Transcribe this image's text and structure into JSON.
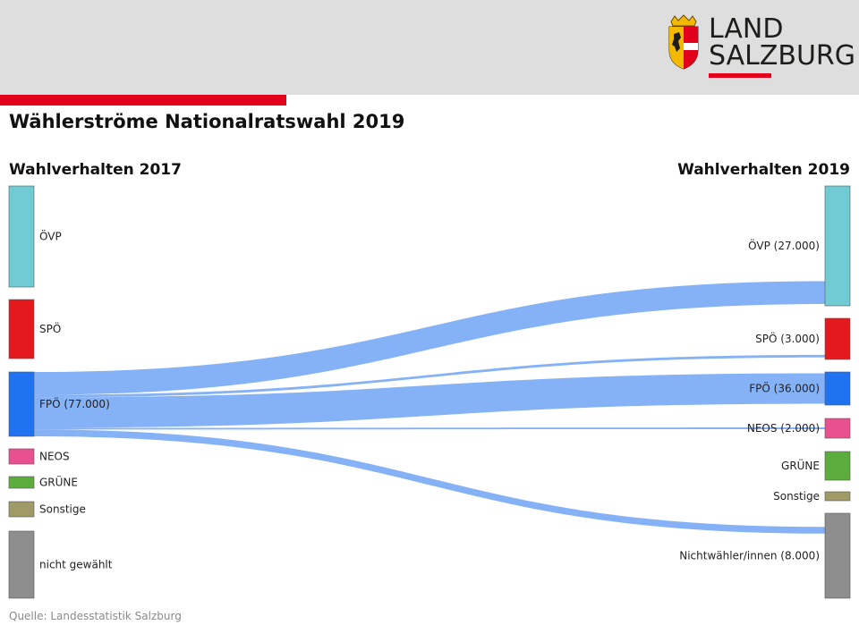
{
  "logo": {
    "line1": "LAND",
    "line2": "SALZBURG"
  },
  "colors": {
    "header_bg": "#dedede",
    "accent": "#e2001a",
    "flow": "#7eaef7"
  },
  "chart_data": {
    "type": "sankey",
    "title": "Wählerströme Nationalratswahl 2019",
    "left_header": "Wahlverhalten 2017",
    "right_header": "Wahlverhalten 2019",
    "left_nodes": [
      {
        "id": "l_ovp",
        "label": "ÖVP",
        "color": "#70cbd5"
      },
      {
        "id": "l_spo",
        "label": "SPÖ",
        "color": "#e3191e"
      },
      {
        "id": "l_fpo",
        "label": "FPÖ (77.000)",
        "color": "#2073f0",
        "value": 77000
      },
      {
        "id": "l_neos",
        "label": "NEOS",
        "color": "#e8508f"
      },
      {
        "id": "l_grune",
        "label": "GRÜNE",
        "color": "#5cad3d"
      },
      {
        "id": "l_sonst",
        "label": "Sonstige",
        "color": "#9f9a66"
      },
      {
        "id": "l_nicht",
        "label": "nicht gewählt",
        "color": "#8e8e8e"
      }
    ],
    "right_nodes": [
      {
        "id": "r_ovp",
        "label": "ÖVP (27.000)",
        "color": "#70cbd5",
        "value": 27000
      },
      {
        "id": "r_spo",
        "label": "SPÖ (3.000)",
        "color": "#e3191e",
        "value": 3000
      },
      {
        "id": "r_fpo",
        "label": "FPÖ (36.000)",
        "color": "#2073f0",
        "value": 36000
      },
      {
        "id": "r_neos",
        "label": "NEOS (2.000)",
        "color": "#e8508f",
        "value": 2000
      },
      {
        "id": "r_grune",
        "label": "GRÜNE",
        "color": "#5cad3d"
      },
      {
        "id": "r_sonst",
        "label": "Sonstige",
        "color": "#9f9a66"
      },
      {
        "id": "r_nicht",
        "label": "Nichtwähler/innen (8.000)",
        "color": "#8e8e8e",
        "value": 8000
      }
    ],
    "flows": [
      {
        "from": "l_fpo",
        "to": "r_ovp",
        "value": 27000
      },
      {
        "from": "l_fpo",
        "to": "r_spo",
        "value": 3000
      },
      {
        "from": "l_fpo",
        "to": "r_fpo",
        "value": 36000
      },
      {
        "from": "l_fpo",
        "to": "r_neos",
        "value": 2000
      },
      {
        "from": "l_fpo",
        "to": "r_nicht",
        "value": 8000
      }
    ],
    "source": "Quelle: Landesstatistik Salzburg"
  }
}
